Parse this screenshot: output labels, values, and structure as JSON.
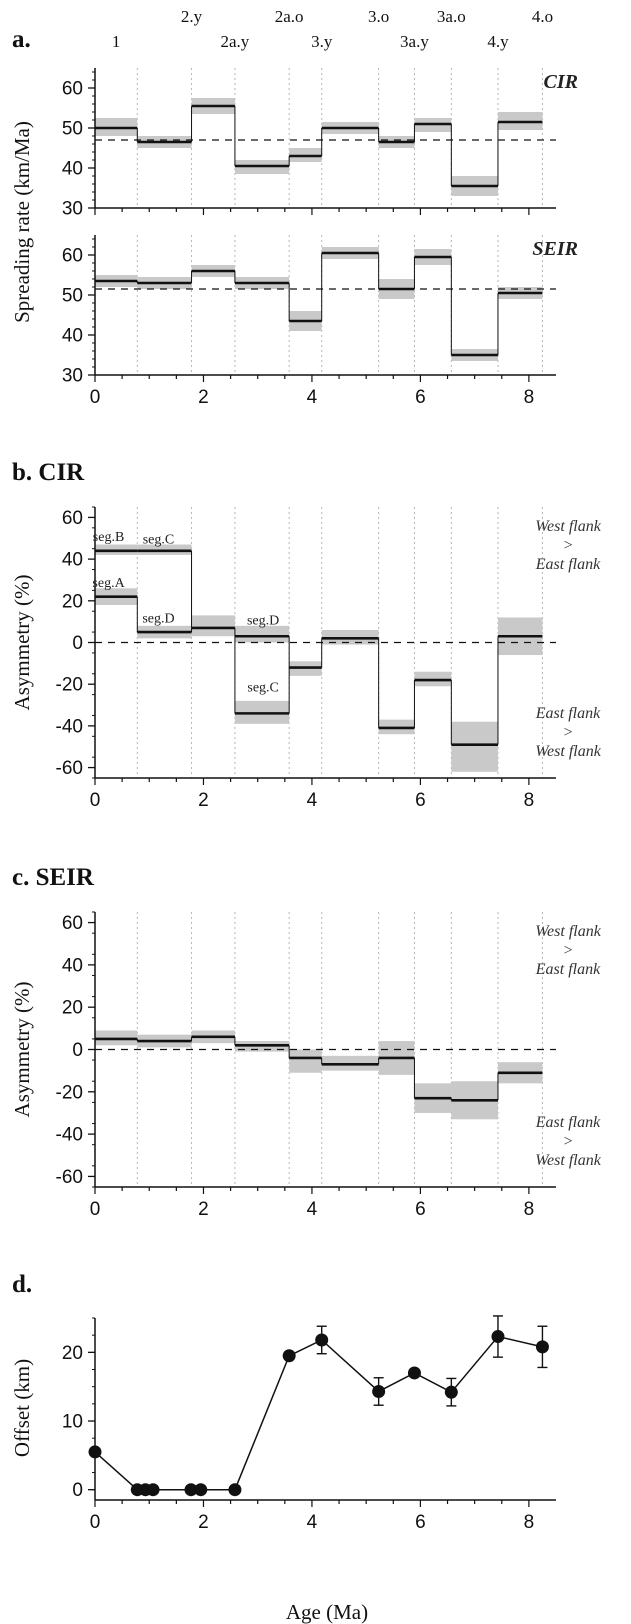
{
  "colors": {
    "band": "#c9c9c9",
    "line": "#111111",
    "grid": "#b5b5b5"
  },
  "chart_data": [
    {
      "panel": "a",
      "type": "step",
      "title": "a.",
      "ylabel": "Spreading rate (km/Ma)",
      "xlim": [
        0,
        8.5
      ],
      "chron_labels": [
        {
          "label": "1",
          "x": 0.39
        },
        {
          "label": "2.y",
          "x": 1.78
        },
        {
          "label": "2a.y",
          "x": 2.58
        },
        {
          "label": "2a.o",
          "x": 3.58
        },
        {
          "label": "3.y",
          "x": 4.18
        },
        {
          "label": "3.o",
          "x": 5.23
        },
        {
          "label": "3a.y",
          "x": 5.89
        },
        {
          "label": "3a.o",
          "x": 6.57
        },
        {
          "label": "4.y",
          "x": 7.43
        },
        {
          "label": "4.o",
          "x": 8.25
        }
      ],
      "boundaries": [
        0.78,
        1.78,
        2.58,
        3.58,
        4.18,
        5.23,
        5.89,
        6.57,
        7.43,
        8.25
      ],
      "subplots": [
        {
          "name": "CIR",
          "ylim": [
            30,
            65
          ],
          "yticks": [
            30,
            40,
            50,
            60
          ],
          "mean": 47,
          "intervals": [
            {
              "x0": 0,
              "x1": 0.78,
              "y": 50,
              "lo": 48,
              "hi": 52.5
            },
            {
              "x0": 0.78,
              "x1": 1.78,
              "y": 46.5,
              "lo": 45,
              "hi": 48
            },
            {
              "x0": 1.78,
              "x1": 2.58,
              "y": 55.5,
              "lo": 53.5,
              "hi": 57.5
            },
            {
              "x0": 2.58,
              "x1": 3.58,
              "y": 40.5,
              "lo": 38.5,
              "hi": 42
            },
            {
              "x0": 3.58,
              "x1": 4.18,
              "y": 43,
              "lo": 41.5,
              "hi": 45
            },
            {
              "x0": 4.18,
              "x1": 5.23,
              "y": 50,
              "lo": 48.5,
              "hi": 51.5
            },
            {
              "x0": 5.23,
              "x1": 5.89,
              "y": 46.5,
              "lo": 45,
              "hi": 48
            },
            {
              "x0": 5.89,
              "x1": 6.57,
              "y": 51,
              "lo": 49,
              "hi": 52.5
            },
            {
              "x0": 6.57,
              "x1": 7.43,
              "y": 35.5,
              "lo": 33,
              "hi": 38
            },
            {
              "x0": 7.43,
              "x1": 8.25,
              "y": 51.5,
              "lo": 49.5,
              "hi": 54
            }
          ]
        },
        {
          "name": "SEIR",
          "ylim": [
            30,
            65
          ],
          "yticks": [
            30,
            40,
            50,
            60
          ],
          "mean": 51.5,
          "intervals": [
            {
              "x0": 0,
              "x1": 0.78,
              "y": 53.5,
              "lo": 52,
              "hi": 55
            },
            {
              "x0": 0.78,
              "x1": 1.78,
              "y": 53,
              "lo": 51.5,
              "hi": 54.5
            },
            {
              "x0": 1.78,
              "x1": 2.58,
              "y": 56,
              "lo": 54.5,
              "hi": 57.5
            },
            {
              "x0": 2.58,
              "x1": 3.58,
              "y": 53,
              "lo": 51.5,
              "hi": 54.5
            },
            {
              "x0": 3.58,
              "x1": 4.18,
              "y": 43.5,
              "lo": 41,
              "hi": 46
            },
            {
              "x0": 4.18,
              "x1": 5.23,
              "y": 60.5,
              "lo": 59,
              "hi": 62
            },
            {
              "x0": 5.23,
              "x1": 5.89,
              "y": 51.5,
              "lo": 49,
              "hi": 54
            },
            {
              "x0": 5.89,
              "x1": 6.57,
              "y": 59.5,
              "lo": 57.5,
              "hi": 61.5
            },
            {
              "x0": 6.57,
              "x1": 7.43,
              "y": 35,
              "lo": 33.5,
              "hi": 36.5
            },
            {
              "x0": 7.43,
              "x1": 8.25,
              "y": 50.5,
              "lo": 49,
              "hi": 52
            }
          ]
        }
      ],
      "xticks": [
        0,
        2,
        4,
        6,
        8
      ]
    },
    {
      "panel": "b",
      "type": "step",
      "title": "b. CIR",
      "ylabel": "Asymmetry (%)",
      "xlim": [
        0,
        8.5
      ],
      "ylim": [
        -65,
        65
      ],
      "yticks": [
        -60,
        -40,
        -20,
        0,
        20,
        40,
        60
      ],
      "xticks": [
        0,
        2,
        4,
        6,
        8
      ],
      "mean": 0,
      "boundaries": [
        0.78,
        1.78,
        2.58,
        3.58,
        4.18,
        5.23,
        5.89,
        6.57,
        7.43,
        8.25
      ],
      "flank_top": [
        "West flank",
        ">",
        "East flank"
      ],
      "flank_bottom": [
        "East flank",
        ">",
        "West flank"
      ],
      "intervals": [
        {
          "x0": 0,
          "x1": 0.78,
          "y": 44,
          "lo": 42,
          "hi": 47
        },
        {
          "x0": 0.78,
          "x1": 1.78,
          "y": 44,
          "lo": 42,
          "hi": 47
        },
        {
          "x0": 0,
          "x1": 0.78,
          "y": 22,
          "lo": 18,
          "hi": 26
        },
        {
          "x0": 0.78,
          "x1": 1.78,
          "y": 5,
          "lo": 2,
          "hi": 8
        },
        {
          "x0": 1.78,
          "x1": 2.58,
          "y": 7,
          "lo": 3,
          "hi": 13
        },
        {
          "x0": 2.58,
          "x1": 3.58,
          "y": 3,
          "lo": 0,
          "hi": 8
        },
        {
          "x0": 2.58,
          "x1": 3.58,
          "y": -34,
          "lo": -39,
          "hi": -28
        },
        {
          "x0": 3.58,
          "x1": 4.18,
          "y": -12,
          "lo": -16,
          "hi": -9
        },
        {
          "x0": 4.18,
          "x1": 5.23,
          "y": 2,
          "lo": -1,
          "hi": 6
        },
        {
          "x0": 5.23,
          "x1": 5.89,
          "y": -41,
          "lo": -44,
          "hi": -37
        },
        {
          "x0": 5.89,
          "x1": 6.57,
          "y": -18,
          "lo": -21,
          "hi": -14
        },
        {
          "x0": 6.57,
          "x1": 7.43,
          "y": -49,
          "lo": -62,
          "hi": -38
        },
        {
          "x0": 7.43,
          "x1": 8.25,
          "y": 3,
          "lo": -6,
          "hi": 12
        }
      ],
      "connectors": [
        {
          "x": 0.78,
          "y0": 22,
          "y1": 5
        },
        {
          "x": 1.78,
          "y0": 44,
          "y1": 7
        },
        {
          "x": 1.78,
          "y0": 5,
          "y1": 7
        },
        {
          "x": 2.58,
          "y0": 7,
          "y1": -34
        },
        {
          "x": 3.58,
          "y0": -34,
          "y1": -12
        },
        {
          "x": 3.58,
          "y0": 3,
          "y1": -12
        },
        {
          "x": 4.18,
          "y0": -12,
          "y1": 2
        },
        {
          "x": 5.23,
          "y0": 2,
          "y1": -41
        },
        {
          "x": 5.89,
          "y0": -41,
          "y1": -18
        },
        {
          "x": 6.57,
          "y0": -18,
          "y1": -49
        },
        {
          "x": 7.43,
          "y0": -49,
          "y1": 3
        }
      ],
      "segment_labels": [
        {
          "label": "seg.B",
          "x": 0.25,
          "y": 51
        },
        {
          "label": "seg.C",
          "x": 1.17,
          "y": 50
        },
        {
          "label": "seg.A",
          "x": 0.25,
          "y": 29
        },
        {
          "label": "seg.D",
          "x": 1.17,
          "y": 12
        },
        {
          "label": "seg.D",
          "x": 3.1,
          "y": 11
        },
        {
          "label": "seg.C",
          "x": 3.1,
          "y": -21
        }
      ]
    },
    {
      "panel": "c",
      "type": "step",
      "title": "c. SEIR",
      "ylabel": "Asymmetry (%)",
      "xlim": [
        0,
        8.5
      ],
      "ylim": [
        -65,
        65
      ],
      "yticks": [
        -60,
        -40,
        -20,
        0,
        20,
        40,
        60
      ],
      "xticks": [
        0,
        2,
        4,
        6,
        8
      ],
      "mean": 0,
      "boundaries": [
        0.78,
        1.78,
        2.58,
        3.58,
        4.18,
        5.23,
        5.89,
        6.57,
        7.43,
        8.25
      ],
      "flank_top": [
        "West flank",
        ">",
        "East flank"
      ],
      "flank_bottom": [
        "East flank",
        ">",
        "West flank"
      ],
      "intervals": [
        {
          "x0": 0,
          "x1": 0.78,
          "y": 5,
          "lo": 2,
          "hi": 9
        },
        {
          "x0": 0.78,
          "x1": 1.78,
          "y": 4,
          "lo": 1,
          "hi": 7
        },
        {
          "x0": 1.78,
          "x1": 2.58,
          "y": 6,
          "lo": 3,
          "hi": 9
        },
        {
          "x0": 2.58,
          "x1": 3.58,
          "y": 2,
          "lo": -1,
          "hi": 4
        },
        {
          "x0": 3.58,
          "x1": 4.18,
          "y": -4,
          "lo": -11,
          "hi": 0
        },
        {
          "x0": 4.18,
          "x1": 5.23,
          "y": -7,
          "lo": -10,
          "hi": -3
        },
        {
          "x0": 5.23,
          "x1": 5.89,
          "y": -4,
          "lo": -12,
          "hi": 4
        },
        {
          "x0": 5.89,
          "x1": 6.57,
          "y": -23,
          "lo": -30,
          "hi": -16
        },
        {
          "x0": 6.57,
          "x1": 7.43,
          "y": -24,
          "lo": -33,
          "hi": -15
        },
        {
          "x0": 7.43,
          "x1": 8.25,
          "y": -11,
          "lo": -16,
          "hi": -6
        }
      ]
    },
    {
      "panel": "d",
      "type": "line",
      "title": "d.",
      "ylabel": "Offset (km)",
      "xlabel": "Age (Ma)",
      "xlim": [
        0,
        8.5
      ],
      "ylim": [
        -1.5,
        25
      ],
      "yticks": [
        0,
        10,
        20
      ],
      "xticks": [
        0,
        2,
        4,
        6,
        8
      ],
      "points": [
        {
          "x": 0,
          "y": 5.5,
          "err": 0
        },
        {
          "x": 0.78,
          "y": 0,
          "err": 0
        },
        {
          "x": 0.93,
          "y": 0,
          "err": 0
        },
        {
          "x": 1.07,
          "y": 0,
          "err": 0
        },
        {
          "x": 1.77,
          "y": 0,
          "err": 0
        },
        {
          "x": 1.95,
          "y": 0,
          "err": 0
        },
        {
          "x": 2.58,
          "y": 0,
          "err": 0
        },
        {
          "x": 3.58,
          "y": 19.5,
          "err": 0.5
        },
        {
          "x": 4.18,
          "y": 21.8,
          "err": 2
        },
        {
          "x": 5.23,
          "y": 14.3,
          "err": 2
        },
        {
          "x": 5.89,
          "y": 17,
          "err": 0.5
        },
        {
          "x": 6.57,
          "y": 14.2,
          "err": 2
        },
        {
          "x": 7.43,
          "y": 22.3,
          "err": 3
        },
        {
          "x": 8.25,
          "y": 20.8,
          "err": 3
        }
      ]
    }
  ]
}
